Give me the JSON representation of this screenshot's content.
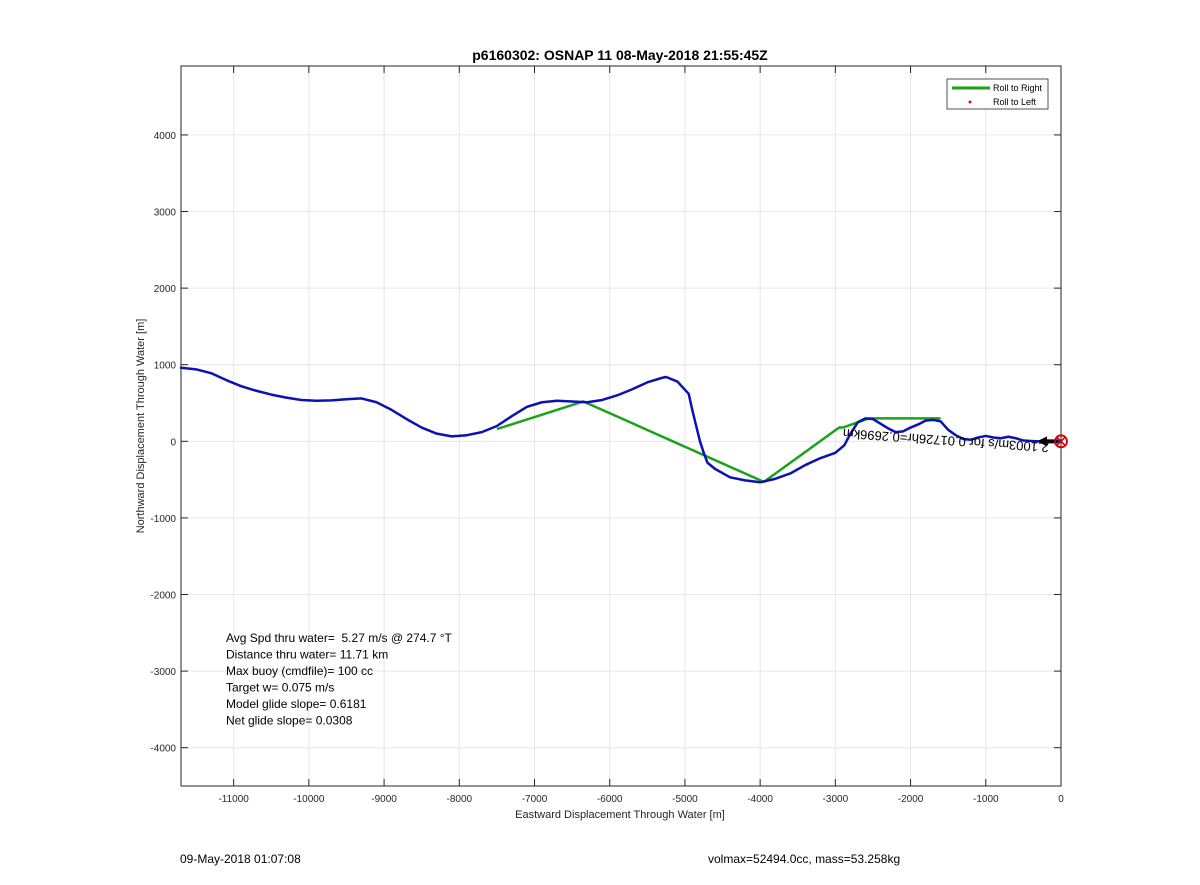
{
  "chart_data": {
    "type": "line",
    "title": "p6160302: OSNAP 11 08-May-2018 21:55:45Z",
    "xlabel": "Eastward Displacement Through Water [m]",
    "ylabel": "Northward Displacement Through Water [m]",
    "xlim": [
      -11700,
      0
    ],
    "ylim": [
      -4500,
      4900
    ],
    "x_ticks": [
      -11000,
      -10000,
      -9000,
      -8000,
      -7000,
      -6000,
      -5000,
      -4000,
      -3000,
      -2000,
      -1000,
      0
    ],
    "y_ticks": [
      -4000,
      -3000,
      -2000,
      -1000,
      0,
      1000,
      2000,
      3000,
      4000
    ],
    "grid": true,
    "legend_position": "top-right",
    "series": [
      {
        "name": "Roll to Right",
        "color": "#1aa31a",
        "segments": [
          [
            [
              -7500,
              160
            ],
            [
              -6350,
              520
            ],
            [
              -3950,
              -530
            ],
            [
              -2950,
              180
            ],
            [
              -2900,
              180
            ],
            [
              -2550,
              300
            ],
            [
              -2100,
              300
            ],
            [
              -1600,
              300
            ]
          ]
        ]
      },
      {
        "name": "Roll to Left",
        "color": "#e01010",
        "marker": "dot",
        "points": []
      },
      {
        "color": "#0d10b4",
        "points": [
          [
            -11700,
            960
          ],
          [
            -11500,
            940
          ],
          [
            -11300,
            890
          ],
          [
            -11100,
            800
          ],
          [
            -10900,
            720
          ],
          [
            -10700,
            660
          ],
          [
            -10500,
            610
          ],
          [
            -10300,
            570
          ],
          [
            -10100,
            540
          ],
          [
            -9900,
            530
          ],
          [
            -9700,
            535
          ],
          [
            -9500,
            550
          ],
          [
            -9300,
            560
          ],
          [
            -9100,
            510
          ],
          [
            -8900,
            410
          ],
          [
            -8700,
            290
          ],
          [
            -8500,
            180
          ],
          [
            -8300,
            100
          ],
          [
            -8100,
            65
          ],
          [
            -7900,
            80
          ],
          [
            -7700,
            120
          ],
          [
            -7500,
            200
          ],
          [
            -7300,
            330
          ],
          [
            -7100,
            450
          ],
          [
            -6900,
            510
          ],
          [
            -6700,
            530
          ],
          [
            -6500,
            520
          ],
          [
            -6300,
            510
          ],
          [
            -6100,
            540
          ],
          [
            -5900,
            600
          ],
          [
            -5700,
            680
          ],
          [
            -5500,
            770
          ],
          [
            -5300,
            830
          ],
          [
            -5250,
            840
          ],
          [
            -5100,
            780
          ],
          [
            -4950,
            620
          ],
          [
            -4900,
            400
          ],
          [
            -4850,
            200
          ],
          [
            -4800,
            0
          ],
          [
            -4750,
            -150
          ],
          [
            -4700,
            -280
          ],
          [
            -4600,
            -360
          ],
          [
            -4400,
            -470
          ],
          [
            -4200,
            -510
          ],
          [
            -4000,
            -535
          ],
          [
            -3800,
            -490
          ],
          [
            -3600,
            -420
          ],
          [
            -3400,
            -310
          ],
          [
            -3200,
            -220
          ],
          [
            -3000,
            -150
          ],
          [
            -2880,
            -50
          ],
          [
            -2800,
            100
          ],
          [
            -2700,
            250
          ],
          [
            -2600,
            300
          ],
          [
            -2500,
            290
          ],
          [
            -2400,
            230
          ],
          [
            -2300,
            170
          ],
          [
            -2200,
            120
          ],
          [
            -2100,
            130
          ],
          [
            -2000,
            180
          ],
          [
            -1900,
            220
          ],
          [
            -1800,
            270
          ],
          [
            -1700,
            280
          ],
          [
            -1600,
            260
          ],
          [
            -1500,
            150
          ],
          [
            -1400,
            80
          ],
          [
            -1300,
            30
          ],
          [
            -1200,
            20
          ],
          [
            -1100,
            50
          ],
          [
            -1000,
            70
          ],
          [
            -900,
            50
          ],
          [
            -800,
            40
          ],
          [
            -700,
            60
          ],
          [
            -600,
            40
          ],
          [
            -500,
            10
          ],
          [
            -400,
            5
          ],
          [
            -300,
            0
          ],
          [
            -200,
            5
          ],
          [
            -100,
            2
          ],
          [
            0,
            0
          ]
        ]
      }
    ],
    "annotations": {
      "current_label": "2.1003m/s for 0.01726hr=0.2696km",
      "end_marker": "circle-x"
    }
  },
  "stats": [
    "Avg Spd thru water=  5.27 m/s @ 274.7 °T",
    "Distance thru water= 11.71 km",
    "Max buoy (cmdfile)= 100 cc",
    "Target w= 0.075 m/s",
    "Model glide slope= 0.6181",
    "Net glide slope= 0.0308"
  ],
  "footer": {
    "left": "09-May-2018 01:07:08",
    "right": "volmax=52494.0cc, mass=53.258kg"
  }
}
